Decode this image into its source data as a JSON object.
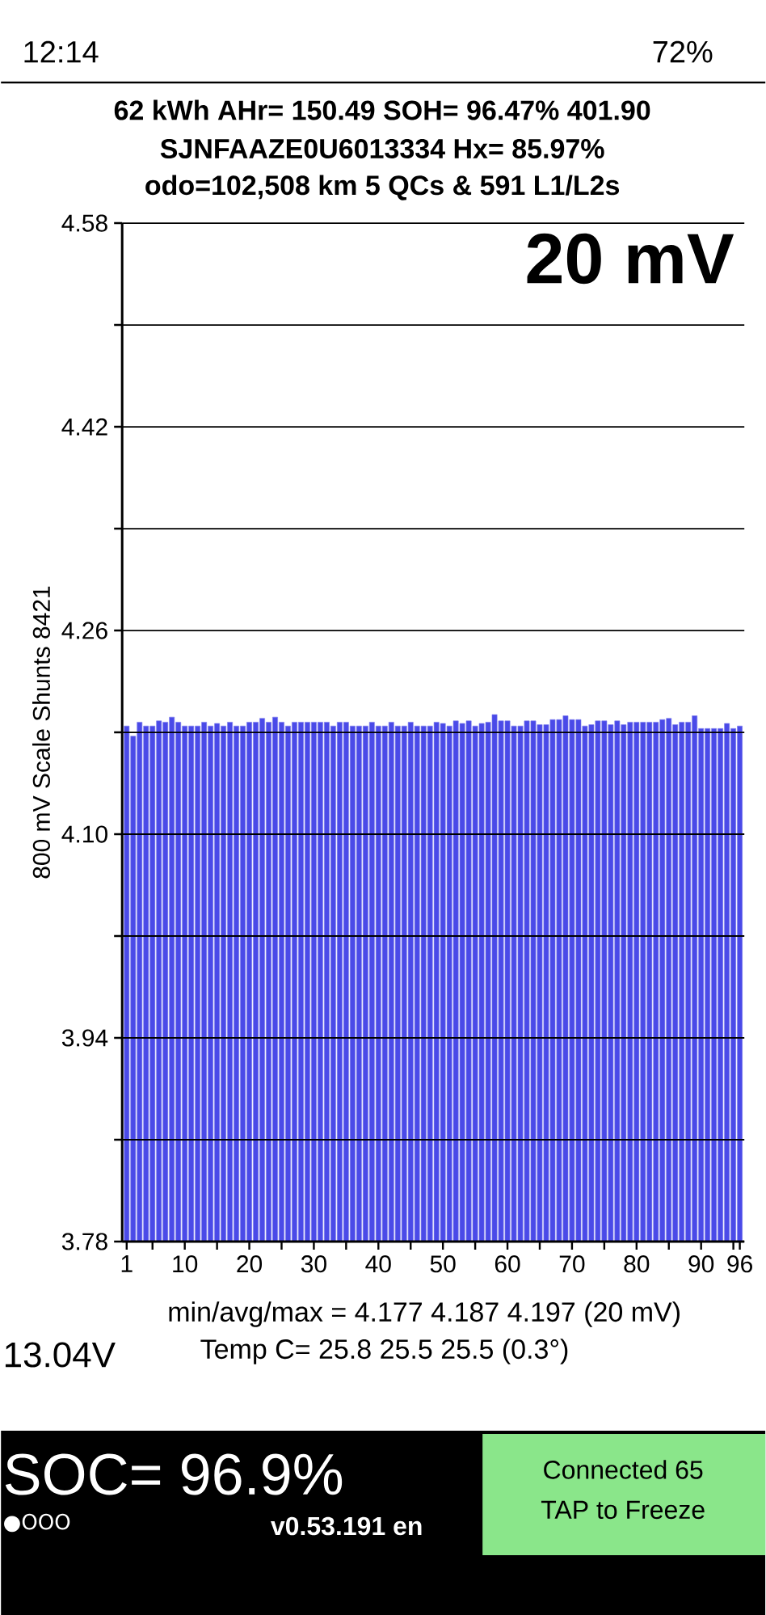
{
  "chart_data": {
    "type": "bar",
    "title": "62 kWh  AHr= 150.49 SOH= 96.47% 401.90",
    "subtitle": "SJNFAAZE0U6013334   Hx= 85.97%",
    "ylabel": "800 mV Scale  Shunts 8421",
    "annotations": [
      "odo=102,508 km 5 QCs & 591 L1/L2s",
      "20 mV",
      "min/avg/max = 4.177 4.187 4.197  (20 mV)",
      "13.04V",
      "Temp C= 25.8  25.5  25.5  (0.3°)",
      "SOC= 96.9%",
      "●OOO",
      "v0.53.191 en",
      "Connected 65",
      "TAP to Freeze",
      "12:14",
      "72%"
    ],
    "x": [
      1,
      2,
      3,
      4,
      5,
      6,
      7,
      8,
      9,
      10,
      11,
      12,
      13,
      14,
      15,
      16,
      17,
      18,
      19,
      20,
      21,
      22,
      23,
      24,
      25,
      26,
      27,
      28,
      29,
      30,
      31,
      32,
      33,
      34,
      35,
      36,
      37,
      38,
      39,
      40,
      41,
      42,
      43,
      44,
      45,
      46,
      47,
      48,
      49,
      50,
      51,
      52,
      53,
      54,
      55,
      56,
      57,
      58,
      59,
      60,
      61,
      62,
      63,
      64,
      65,
      66,
      67,
      68,
      69,
      70,
      71,
      72,
      73,
      74,
      75,
      76,
      77,
      78,
      79,
      80,
      81,
      82,
      83,
      84,
      85,
      86,
      87,
      88,
      89,
      90,
      91,
      92,
      93,
      94,
      95,
      96
    ],
    "values": [
      4.185,
      4.177,
      4.188,
      4.185,
      4.185,
      4.189,
      4.188,
      4.192,
      4.188,
      4.185,
      4.185,
      4.185,
      4.188,
      4.185,
      4.187,
      4.185,
      4.188,
      4.185,
      4.185,
      4.188,
      4.188,
      4.191,
      4.188,
      4.192,
      4.188,
      4.185,
      4.188,
      4.188,
      4.188,
      4.188,
      4.188,
      4.188,
      4.185,
      4.188,
      4.188,
      4.185,
      4.185,
      4.185,
      4.188,
      4.185,
      4.185,
      4.188,
      4.185,
      4.185,
      4.188,
      4.185,
      4.185,
      4.185,
      4.188,
      4.187,
      4.185,
      4.189,
      4.187,
      4.189,
      4.185,
      4.187,
      4.188,
      4.194,
      4.189,
      4.189,
      4.185,
      4.185,
      4.189,
      4.189,
      4.186,
      4.186,
      4.19,
      4.19,
      4.193,
      4.19,
      4.19,
      4.185,
      4.186,
      4.189,
      4.189,
      4.186,
      4.189,
      4.186,
      4.188,
      4.188,
      4.188,
      4.188,
      4.188,
      4.19,
      4.191,
      4.186,
      4.188,
      4.188,
      4.193,
      4.183,
      4.183,
      4.183,
      4.183,
      4.187,
      4.183,
      4.185
    ],
    "color": "#4a4ae8",
    "xlim": [
      0.3,
      96.7
    ],
    "xticks": [
      1,
      {
        "value": 5,
        "label": null
      },
      10,
      {
        "value": 15,
        "label": null
      },
      20,
      {
        "value": 25,
        "label": null
      },
      30,
      {
        "value": 35,
        "label": null
      },
      40,
      {
        "value": 45,
        "label": null
      },
      50,
      {
        "value": 55,
        "label": null
      },
      60,
      {
        "value": 65,
        "label": null
      },
      70,
      {
        "value": 75,
        "label": null
      },
      80,
      {
        "value": 85,
        "label": null
      },
      90,
      {
        "value": 95,
        "label": null
      },
      96
    ],
    "ylim": [
      3.78,
      4.58
    ],
    "yticks": [
      3.78,
      {
        "value": 3.86,
        "label": null
      },
      3.94,
      {
        "value": 4.02,
        "label": null
      },
      {
        "value": 4.1,
        "label": "4.10"
      },
      {
        "value": 4.18,
        "label": null
      },
      4.26,
      {
        "value": 4.34,
        "label": null
      },
      4.42,
      {
        "value": 4.5,
        "label": null
      },
      4.58
    ],
    "grid": "y"
  }
}
